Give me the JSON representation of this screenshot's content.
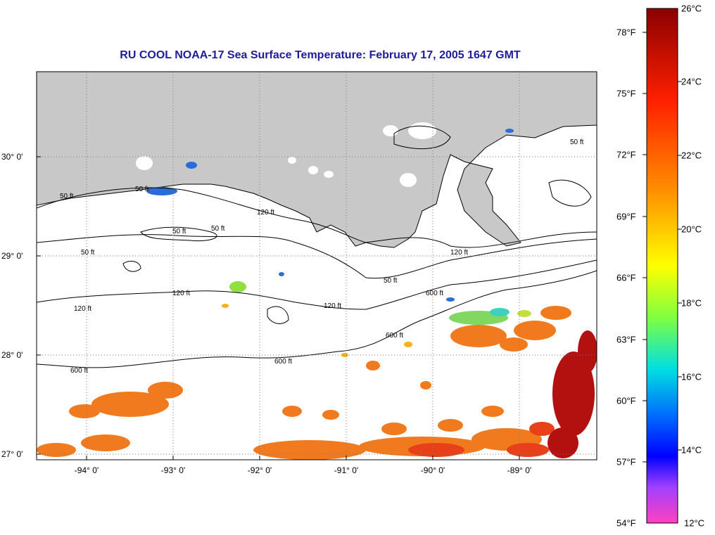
{
  "title": "RU COOL  NOAA-17  Sea Surface Temperature:  February 17, 2005 1647 GMT",
  "map": {
    "lon_ticks": [
      "-94° 0'",
      "-93° 0'",
      "-92° 0'",
      "-91° 0'",
      "-90° 0'",
      "-89° 0'"
    ],
    "lat_ticks": [
      "30° 0'",
      "29° 0'",
      "28° 0'",
      "27° 0'"
    ],
    "contour_labels": [
      "50 ft",
      "50 ft",
      "50 ft",
      "50 ft",
      "50 ft",
      "50 ft",
      "50 ft",
      "120 ft",
      "120 ft",
      "120 ft",
      "120 ft",
      "120 ft",
      "600 ft",
      "600 ft",
      "600 ft",
      "600 ft"
    ],
    "colors": {
      "land": "#c8c8c8",
      "ocean_cloud": "#ffffff",
      "warm_water": "#f07020",
      "hot_water": "#b01010",
      "cool_water": "#60d060",
      "accent_text": "#1d1d9a"
    }
  },
  "colorbar": {
    "f_labels": [
      "78°F",
      "75°F",
      "72°F",
      "69°F",
      "66°F",
      "63°F",
      "60°F",
      "57°F",
      "54°F"
    ],
    "c_labels": [
      "26°C",
      "24°C",
      "22°C",
      "20°C",
      "18°C",
      "16°C",
      "14°C",
      "12°C"
    ]
  }
}
